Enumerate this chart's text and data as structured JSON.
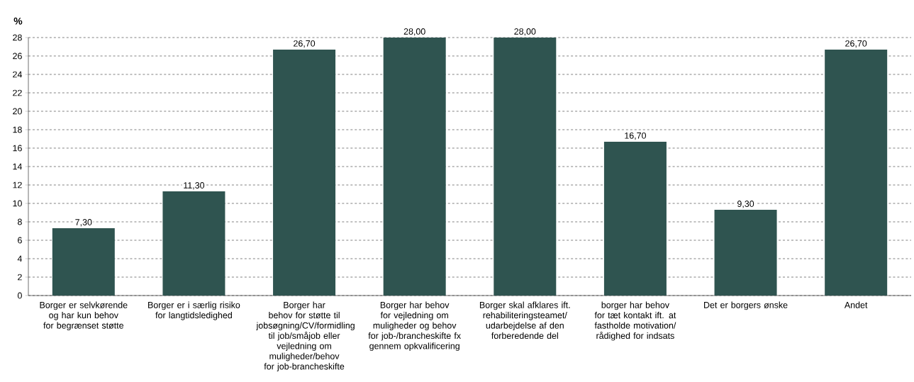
{
  "chart_data": {
    "type": "bar",
    "ylabel": "%",
    "categories": [
      "Borger er selvkørende og har kun behov for begrænset støtte",
      "Borger er i særlig risiko for langtidsledighed",
      "Borger har behov for støtte til jobsøgning/CV/formidling til job/småjob eller vejledning om muligheder/behov for job-brancheskifte",
      "Borger har behov for vejledning om muligheder og behov for job-/brancheskifte fx gennem opkvalificering",
      "Borger skal afklares ift. rehabiliteringsteamet/ udarbejdelse af den forberedende del",
      "borger har behov for tæt kontakt ift. at fastholde motivation/ rådighed for indsats",
      "Det er borgers ønske",
      "Andet"
    ],
    "values": [
      7.3,
      11.3,
      26.7,
      28.0,
      28.0,
      16.7,
      9.3,
      26.7
    ],
    "value_labels": [
      "7,30",
      "11,30",
      "26,70",
      "28,00",
      "28,00",
      "16,70",
      "9,30",
      "26,70"
    ],
    "color": "#2f5450",
    "ylim": [
      0,
      28
    ],
    "yticks": [
      0,
      2,
      4,
      6,
      8,
      10,
      12,
      14,
      16,
      18,
      20,
      22,
      24,
      26,
      28
    ],
    "grid": "y"
  }
}
